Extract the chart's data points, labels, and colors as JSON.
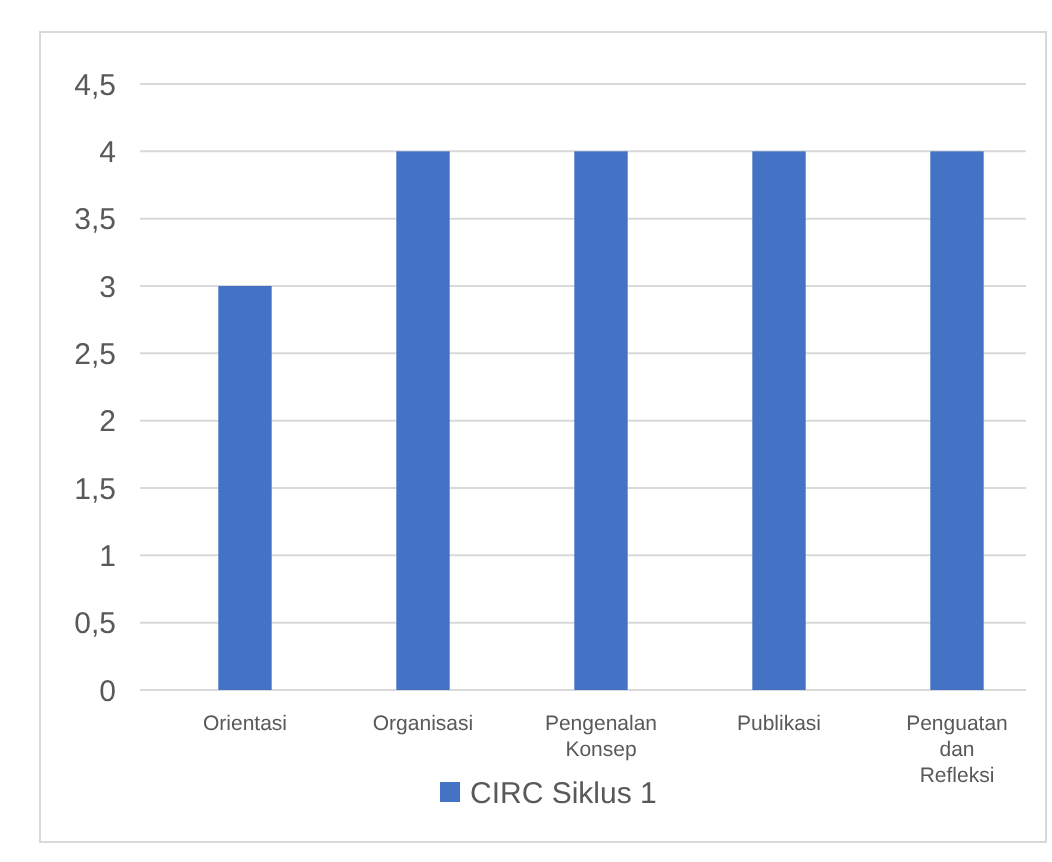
{
  "chart_data": {
    "type": "bar",
    "categories": [
      "Orientasi",
      "Organisasi",
      "Pengenalan Konsep",
      "Publikasi",
      "Penguatan dan Refleksi"
    ],
    "series": [
      {
        "name": "CIRC Siklus 1",
        "color": "#4472c4",
        "values": [
          3,
          4,
          4,
          4,
          4
        ]
      }
    ],
    "ylim": [
      0,
      4.5
    ],
    "yticks": [
      0,
      {
        "value": 0.5,
        "label": "0,5"
      },
      1,
      {
        "value": 1.5,
        "label": "1,5"
      },
      2,
      {
        "value": 2.5,
        "label": "2,5"
      },
      3,
      {
        "value": 3.5,
        "label": "3,5"
      },
      4,
      {
        "value": 4.5,
        "label": "4,5"
      }
    ],
    "grid": "y",
    "legend": "bottom"
  }
}
